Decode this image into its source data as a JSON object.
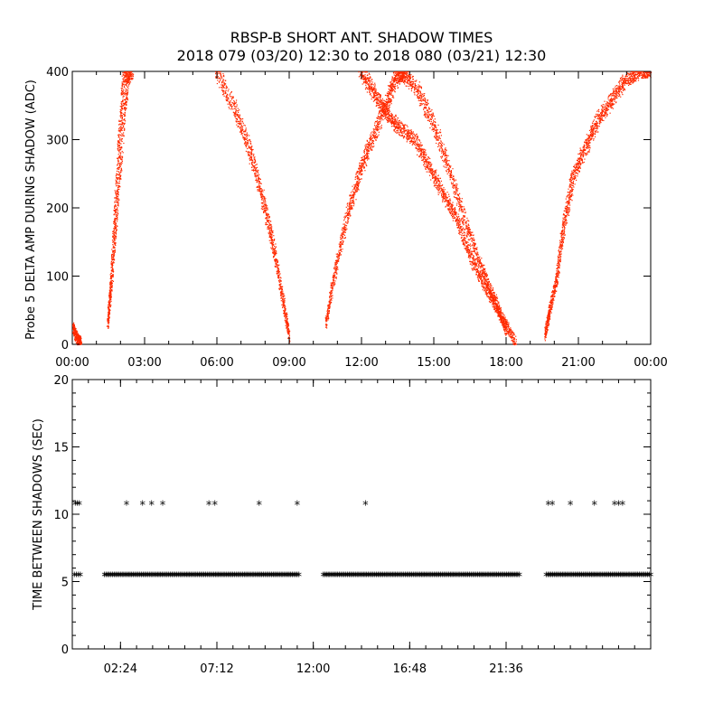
{
  "header": {
    "title": "RBSP-B SHORT ANT. SHADOW TIMES",
    "subtitle": "2018 079 (03/20) 12:30 to 2018 080 (03/21) 12:30"
  },
  "chart_data": [
    {
      "type": "scatter",
      "ylabel": "Probe 5 DELTA AMP DURING SHADOW (ADC)",
      "xlabel": "",
      "xlim": [
        0,
        24
      ],
      "ylim": [
        0,
        400
      ],
      "xticks": [
        0,
        3,
        6,
        9,
        12,
        15,
        18,
        21,
        24
      ],
      "xtick_labels": [
        "00:00",
        "03:00",
        "06:00",
        "09:00",
        "12:00",
        "15:00",
        "18:00",
        "21:00",
        "00:00"
      ],
      "yticks": [
        0,
        100,
        200,
        300,
        400
      ],
      "ytick_labels": [
        "0",
        "100",
        "200",
        "300",
        "400"
      ],
      "color": "#ff2a00",
      "series": [
        {
          "x": [
            0.0,
            0.2,
            0.35
          ],
          "y": [
            25,
            8,
            2
          ]
        },
        {
          "x": [
            1.45,
            1.6,
            1.75,
            1.9,
            2.05,
            2.2,
            2.4
          ],
          "y": [
            30,
            90,
            170,
            250,
            330,
            390,
            400
          ]
        },
        {
          "x": [
            6.0,
            6.8,
            7.4,
            7.9,
            8.3,
            8.7,
            9.0
          ],
          "y": [
            400,
            340,
            280,
            210,
            150,
            70,
            10
          ]
        },
        {
          "x": [
            10.5,
            10.9,
            11.4,
            11.9,
            12.4,
            13.0,
            13.4,
            13.8
          ],
          "y": [
            30,
            110,
            190,
            250,
            300,
            350,
            390,
            400
          ]
        },
        {
          "x": [
            12.0,
            12.5,
            13.0,
            13.5,
            14.2,
            14.8,
            15.4,
            16.0,
            16.6,
            17.2,
            17.8,
            18.4
          ],
          "y": [
            400,
            370,
            340,
            320,
            300,
            260,
            220,
            180,
            120,
            80,
            40,
            2
          ]
        },
        {
          "x": [
            13.5,
            14.2,
            14.9,
            15.6,
            16.3,
            17.0,
            17.6,
            18.0
          ],
          "y": [
            400,
            380,
            330,
            260,
            180,
            110,
            60,
            20
          ]
        },
        {
          "x": [
            19.6,
            19.8,
            20.1,
            20.4,
            20.8,
            21.3,
            21.8,
            22.4,
            23.0,
            23.6,
            24.0
          ],
          "y": [
            15,
            50,
            100,
            180,
            250,
            290,
            330,
            360,
            390,
            400,
            400
          ]
        }
      ]
    },
    {
      "type": "scatter",
      "ylabel": "TIME BETWEEN SHADOWS (SEC)",
      "xlabel": "",
      "xlim": [
        0,
        28.8
      ],
      "ylim": [
        0,
        20
      ],
      "xticks": [
        2.4,
        7.2,
        12.0,
        16.8,
        21.6
      ],
      "xtick_labels": [
        "02:24",
        "07:12",
        "12:00",
        "16:48",
        "21:36"
      ],
      "yticks": [
        0,
        5,
        10,
        15,
        20
      ],
      "ytick_labels": [
        "0",
        "5",
        "10",
        "15",
        "20"
      ],
      "marker": "*",
      "color": "#000000",
      "points_10_7": [
        0.15,
        0.25,
        0.35,
        2.7,
        3.5,
        3.95,
        4.5,
        6.8,
        7.1,
        9.3,
        11.2,
        14.6,
        23.7,
        23.9,
        24.8,
        26.0,
        27.0,
        27.2,
        27.4
      ],
      "points_5_4_extra": [
        0.1,
        0.2,
        0.3,
        0.4
      ],
      "bands_5_4": [
        [
          1.6,
          11.3
        ],
        [
          12.5,
          22.3
        ],
        [
          23.6,
          28.8
        ]
      ]
    }
  ]
}
